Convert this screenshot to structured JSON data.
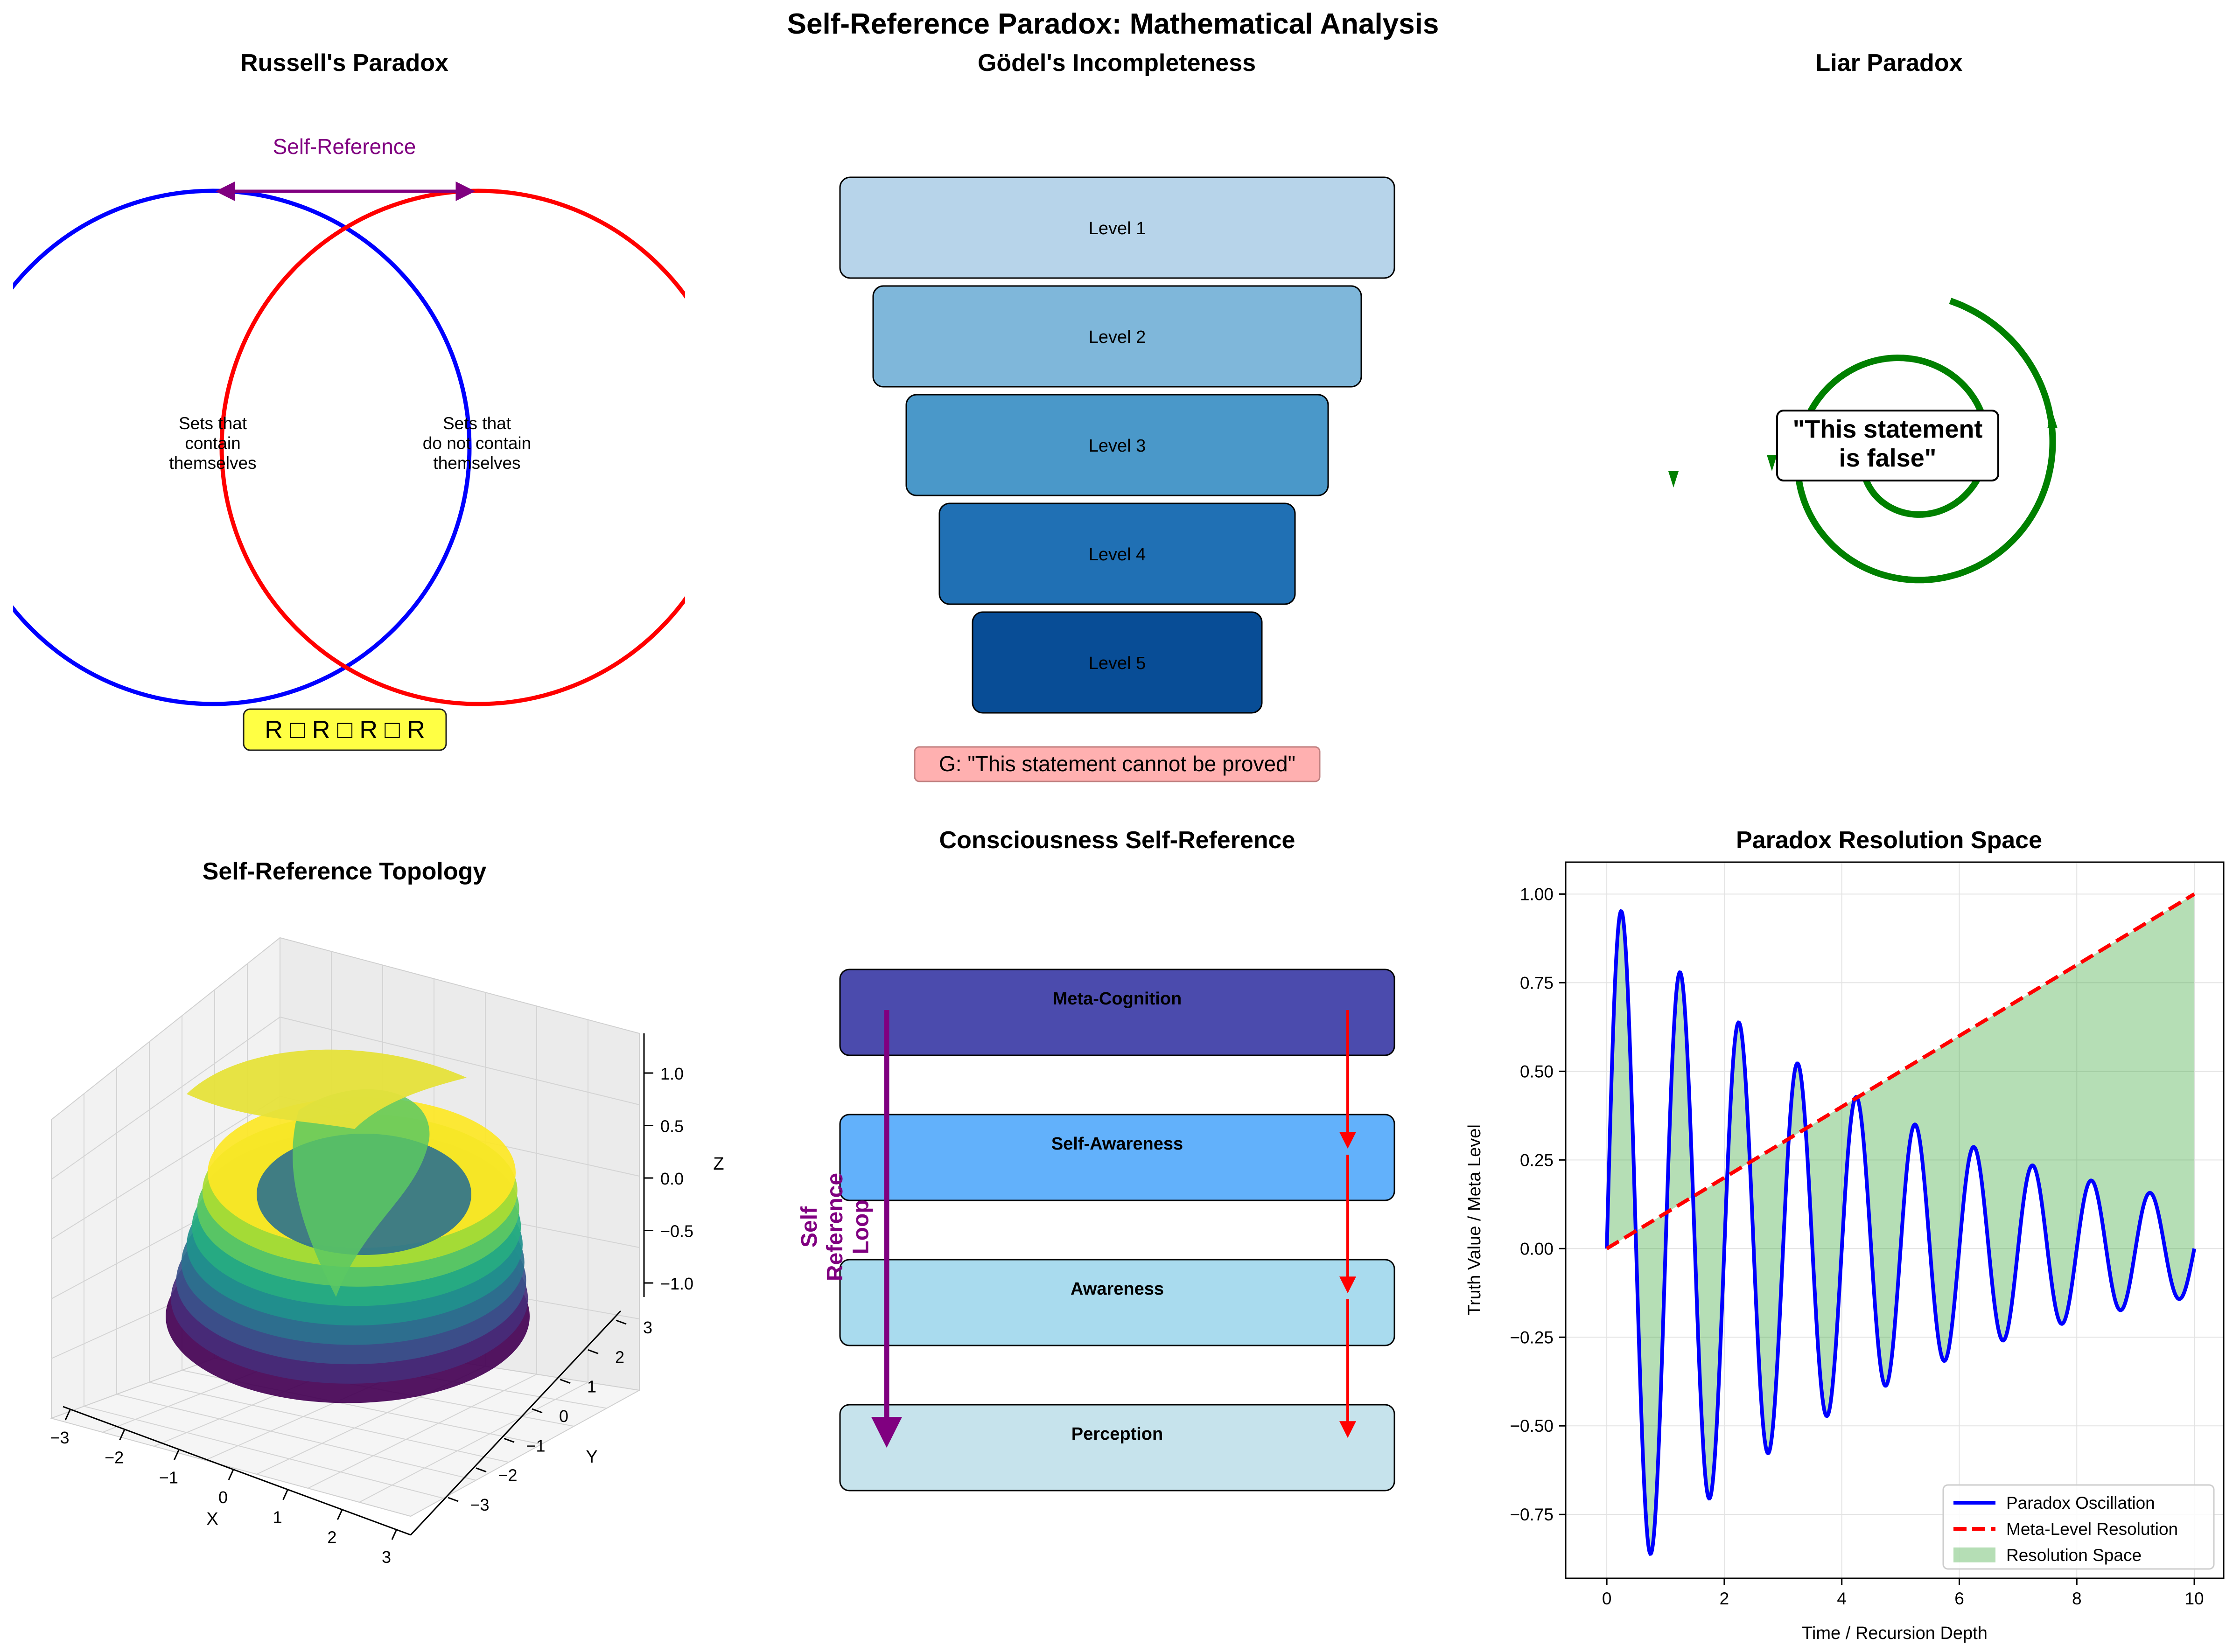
{
  "figure": {
    "suptitle": "Self-Reference Paradox: Mathematical Analysis"
  },
  "panels": {
    "russell": {
      "title": "Russell's Paradox",
      "self_reference_label": "Self-Reference",
      "left_set_label": "Sets that\ncontain\nthemselves",
      "right_set_label": "Sets that\ndo not contain\nthemselves",
      "formula": "R □ R □ R □ R",
      "colors": {
        "left": "#0000ff",
        "right": "#ff0000",
        "arrow": "#800080",
        "formula_bg": "#ffff44"
      }
    },
    "godel": {
      "title": "Gödel's Incompleteness",
      "levels": [
        "Level 1",
        "Level 2",
        "Level 3",
        "Level 4",
        "Level 5"
      ],
      "level_colors": [
        "#b7d4ea",
        "#7fb7da",
        "#4a98c9",
        "#2070b4",
        "#084d96"
      ],
      "statement": "G: \"This statement cannot be proved\""
    },
    "liar": {
      "title": "Liar Paradox",
      "statement": "\"This statement\nis false\"",
      "color": "#008000"
    },
    "topology": {
      "title": "Self-Reference Topology",
      "xlabel": "X",
      "ylabel": "Y",
      "zlabel": "Z",
      "x_ticks": [
        "−3",
        "−2",
        "−1",
        "0",
        "1",
        "2",
        "3"
      ],
      "y_ticks": [
        "3",
        "2",
        "1",
        "0",
        "−1",
        "−2",
        "−3"
      ],
      "z_ticks": [
        "1.0",
        "0.5",
        "0.0",
        "−0.5",
        "−1.0"
      ],
      "colormap": "viridis"
    },
    "consciousness": {
      "title": "Consciousness Self-Reference",
      "layers": [
        {
          "label": "Meta-Cognition",
          "color": "#4b4bad"
        },
        {
          "label": "Self-Awareness",
          "color": "#62b1fb"
        },
        {
          "label": "Awareness",
          "color": "#a9dbee"
        },
        {
          "label": "Perception",
          "color": "#c6e3ec"
        }
      ],
      "loop_label": "Self\nReference\nLoop",
      "loop_color": "#800080",
      "arrow_color": "#ff0000"
    }
  },
  "chart_data": {
    "type": "line",
    "title": "Paradox Resolution Space",
    "xlabel": "Time / Recursion Depth",
    "ylabel": "Truth Value / Meta Level",
    "xlim": [
      -0.7,
      10.5
    ],
    "ylim": [
      -0.93,
      1.09
    ],
    "x_ticks": [
      0,
      2,
      4,
      6,
      8,
      10
    ],
    "y_ticks": [
      -0.75,
      -0.5,
      -0.25,
      0.0,
      0.25,
      0.5,
      0.75,
      1.0
    ],
    "grid": true,
    "legend_position": "lower right",
    "series": [
      {
        "name": "Paradox Oscillation",
        "color": "#0000ff",
        "style": "solid",
        "function": "sin(2*pi*x) * exp(-0.2*x)",
        "x_range": [
          0,
          10
        ]
      },
      {
        "name": "Meta-Level Resolution",
        "color": "#ff0000",
        "style": "dashed",
        "function": "x / 10",
        "x_range": [
          0,
          10
        ]
      },
      {
        "name": "Resolution Space",
        "color": "#2ca02c",
        "style": "fill",
        "fill_between": [
          "Paradox Oscillation",
          "Meta-Level Resolution"
        ],
        "alpha": 0.35
      }
    ]
  }
}
